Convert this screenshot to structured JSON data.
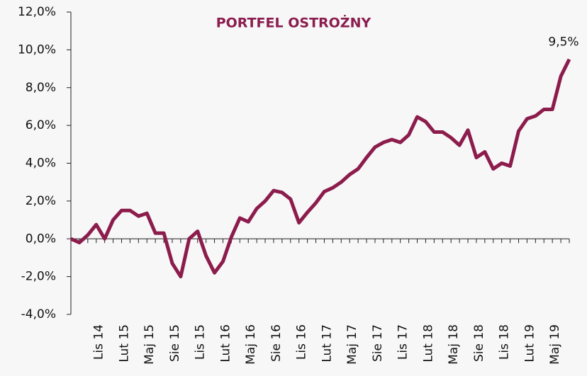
{
  "chart_data": {
    "type": "line",
    "title": "PORTFEL OSTROŻNY",
    "categories": [
      null,
      null,
      null,
      "Lis 14",
      null,
      null,
      "Lut 15",
      null,
      null,
      "Maj 15",
      null,
      null,
      "Sie 15",
      null,
      null,
      "Lis 15",
      null,
      null,
      "Lut 16",
      null,
      null,
      "Maj 16",
      null,
      null,
      "Sie 16",
      null,
      null,
      "Lis 16",
      null,
      null,
      "Lut 17",
      null,
      null,
      "Maj 17",
      null,
      null,
      "Sie 17",
      null,
      null,
      "Lis 17",
      null,
      null,
      "Lut 18",
      null,
      null,
      "Maj 18",
      null,
      null,
      "Sie 18",
      null,
      null,
      "Lis 18",
      null,
      null,
      "Lut 19",
      null,
      null,
      "Maj 19",
      null,
      null
    ],
    "series": [
      {
        "color": "#8c1c4c",
        "values": [
          0.0,
          -0.2,
          0.2,
          0.75,
          0.0,
          1.0,
          1.5,
          1.5,
          1.2,
          1.35,
          0.3,
          0.3,
          -1.3,
          -2.0,
          0.0,
          0.4,
          -0.9,
          -1.8,
          -1.2,
          0.1,
          1.1,
          0.9,
          1.6,
          2.0,
          2.55,
          2.45,
          2.1,
          0.85,
          1.4,
          1.9,
          2.5,
          2.7,
          3.0,
          3.4,
          3.7,
          4.3,
          4.85,
          5.1,
          5.25,
          5.1,
          5.5,
          6.45,
          6.2,
          5.65,
          5.65,
          5.35,
          4.95,
          5.75,
          4.3,
          4.6,
          3.7,
          4.0,
          3.85,
          5.7,
          6.35,
          6.5,
          6.85,
          6.85,
          8.6,
          9.5
        ],
        "value_labels": [
          null,
          null,
          null,
          null,
          null,
          null,
          null,
          null,
          null,
          null,
          null,
          null,
          null,
          null,
          null,
          null,
          null,
          null,
          null,
          null,
          null,
          null,
          null,
          null,
          null,
          null,
          null,
          null,
          null,
          null,
          null,
          null,
          null,
          null,
          null,
          null,
          null,
          null,
          null,
          null,
          null,
          null,
          null,
          null,
          null,
          null,
          null,
          null,
          null,
          null,
          null,
          null,
          null,
          null,
          null,
          null,
          null,
          null,
          null,
          "9,5%"
        ]
      }
    ],
    "ylim": [
      -4,
      12
    ],
    "yticks": [
      {
        "value": -4,
        "label": "-4,0%"
      },
      {
        "value": -2,
        "label": "-2,0%"
      },
      {
        "value": 0,
        "label": "0,0%"
      },
      {
        "value": 2,
        "label": "2,0%"
      },
      {
        "value": 4,
        "label": "4,0%"
      },
      {
        "value": 6,
        "label": "6,0%"
      },
      {
        "value": 8,
        "label": "8,0%"
      },
      {
        "value": 10,
        "label": "10,0%"
      },
      {
        "value": 12,
        "label": "12,0%"
      }
    ]
  }
}
